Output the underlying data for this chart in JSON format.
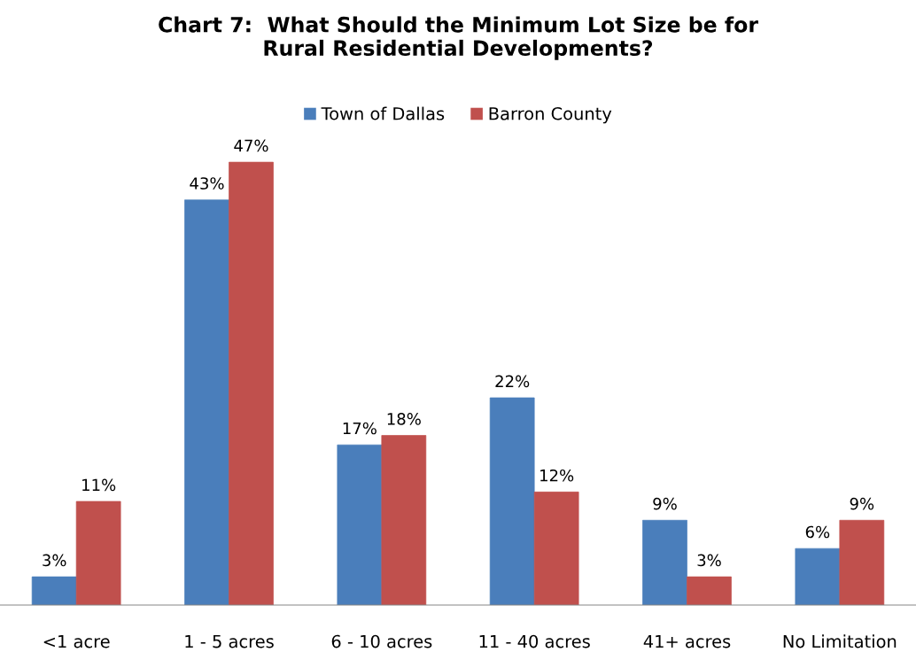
{
  "chart_data": {
    "type": "bar",
    "title": "Chart 7:  What Should the Minimum Lot Size be for\nRural Residential Developments?",
    "categories": [
      "<1 acre",
      "1 - 5 acres",
      "6 - 10 acres",
      "11 - 40 acres",
      "41+ acres",
      "No Limitation"
    ],
    "series": [
      {
        "name": "Town of Dallas",
        "color": "#4a7ebb",
        "values": [
          3,
          43,
          17,
          22,
          9,
          6
        ],
        "value_labels": [
          "3%",
          "43%",
          "17%",
          "22%",
          "9%",
          "6%"
        ]
      },
      {
        "name": "Barron County",
        "color": "#c0504d",
        "values": [
          11,
          47,
          18,
          12,
          3,
          9
        ],
        "value_labels": [
          "11%",
          "47%",
          "18%",
          "12%",
          "3%",
          "9%"
        ]
      }
    ],
    "legend": "top",
    "grid": false
  }
}
